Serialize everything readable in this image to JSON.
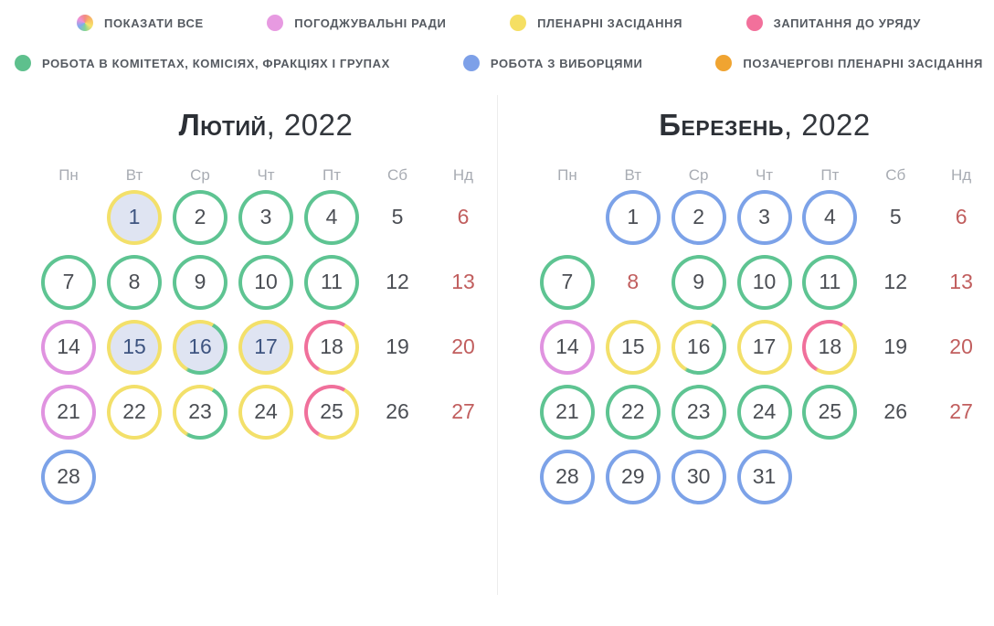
{
  "colors": {
    "ring_green": "#5ec492",
    "ring_blue": "#7ca2e8",
    "ring_magenta": "#e093e0",
    "ring_yellow": "#f3e06a",
    "ring_pink": "#f0709b",
    "legend_orange": "#f0a431",
    "filled_day_bg": "#dfe4f2",
    "holiday_text": "#c15e5e",
    "rainbow_dot": [
      "#f28b82",
      "#f8bd63",
      "#f7e36b",
      "#81d495",
      "#82aaf0",
      "#ef8fd8"
    ]
  },
  "legend": {
    "rows": [
      [
        {
          "id": "show-all",
          "label": "ПОКАЗАТИ ВСЕ",
          "color": "rainbow"
        },
        {
          "id": "coordination-councils",
          "label": "ПОГОДЖУВАЛЬНІ РАДИ",
          "color": "#e79ae1"
        },
        {
          "id": "plenary-sessions",
          "label": "ПЛЕНАРНІ ЗАСІДАННЯ",
          "color": "#f5df63"
        },
        {
          "id": "questions-to-government",
          "label": "ЗАПИТАННЯ ДО УРЯДУ",
          "color": "#f2709b"
        }
      ],
      [
        {
          "id": "committees-work",
          "label": "РОБОТА В КОМІТЕТАХ, КОМІСІЯХ, ФРАКЦІЯХ І ГРУПАХ",
          "color": "#5ec08d"
        },
        {
          "id": "constituents-work",
          "label": "РОБОТА З ВИБОРЦЯМИ",
          "color": "#7da0e8"
        },
        {
          "id": "extraordinary-plenary",
          "label": "ПОЗАЧЕРГОВІ ПЛЕНАРНІ ЗАСІДАННЯ",
          "color": "#f0a431"
        }
      ]
    ]
  },
  "calendar": {
    "weekdays": [
      "Пн",
      "Вт",
      "Ср",
      "Чт",
      "Пт",
      "Сб",
      "Нд"
    ],
    "months": [
      {
        "name": "Лютий",
        "year": ", 2022",
        "weeks": [
          [
            {
              "d": ""
            },
            {
              "d": "1",
              "ring": "yellow",
              "filled": true
            },
            {
              "d": "2",
              "ring": "green"
            },
            {
              "d": "3",
              "ring": "green"
            },
            {
              "d": "4",
              "ring": "green"
            },
            {
              "d": "5"
            },
            {
              "d": "6",
              "red": true
            }
          ],
          [
            {
              "d": "7",
              "ring": "green"
            },
            {
              "d": "8",
              "ring": "green"
            },
            {
              "d": "9",
              "ring": "green"
            },
            {
              "d": "10",
              "ring": "green"
            },
            {
              "d": "11",
              "ring": "green"
            },
            {
              "d": "12"
            },
            {
              "d": "13",
              "red": true
            }
          ],
          [
            {
              "d": "14",
              "ring": "magenta"
            },
            {
              "d": "15",
              "ring": "yellow",
              "filled": true
            },
            {
              "d": "16",
              "ring": "yellow-green",
              "filled": true
            },
            {
              "d": "17",
              "ring": "yellow",
              "filled": true
            },
            {
              "d": "18",
              "ring": "pink-yellow"
            },
            {
              "d": "19"
            },
            {
              "d": "20",
              "red": true
            }
          ],
          [
            {
              "d": "21",
              "ring": "magenta"
            },
            {
              "d": "22",
              "ring": "yellow"
            },
            {
              "d": "23",
              "ring": "yellow-green"
            },
            {
              "d": "24",
              "ring": "yellow"
            },
            {
              "d": "25",
              "ring": "pink-yellow"
            },
            {
              "d": "26"
            },
            {
              "d": "27",
              "red": true
            }
          ],
          [
            {
              "d": "28",
              "ring": "blue"
            },
            {
              "d": ""
            },
            {
              "d": ""
            },
            {
              "d": ""
            },
            {
              "d": ""
            },
            {
              "d": ""
            },
            {
              "d": ""
            }
          ]
        ]
      },
      {
        "name": "Березень",
        "year": ", 2022",
        "weeks": [
          [
            {
              "d": ""
            },
            {
              "d": "1",
              "ring": "blue"
            },
            {
              "d": "2",
              "ring": "blue"
            },
            {
              "d": "3",
              "ring": "blue"
            },
            {
              "d": "4",
              "ring": "blue"
            },
            {
              "d": "5"
            },
            {
              "d": "6",
              "red": true
            }
          ],
          [
            {
              "d": "7",
              "ring": "green"
            },
            {
              "d": "8",
              "red": true
            },
            {
              "d": "9",
              "ring": "green"
            },
            {
              "d": "10",
              "ring": "green"
            },
            {
              "d": "11",
              "ring": "green"
            },
            {
              "d": "12"
            },
            {
              "d": "13",
              "red": true
            }
          ],
          [
            {
              "d": "14",
              "ring": "magenta"
            },
            {
              "d": "15",
              "ring": "yellow"
            },
            {
              "d": "16",
              "ring": "yellow-green"
            },
            {
              "d": "17",
              "ring": "yellow"
            },
            {
              "d": "18",
              "ring": "pink-yellow"
            },
            {
              "d": "19"
            },
            {
              "d": "20",
              "red": true
            }
          ],
          [
            {
              "d": "21",
              "ring": "green"
            },
            {
              "d": "22",
              "ring": "green"
            },
            {
              "d": "23",
              "ring": "green"
            },
            {
              "d": "24",
              "ring": "green"
            },
            {
              "d": "25",
              "ring": "green"
            },
            {
              "d": "26"
            },
            {
              "d": "27",
              "red": true
            }
          ],
          [
            {
              "d": "28",
              "ring": "blue"
            },
            {
              "d": "29",
              "ring": "blue"
            },
            {
              "d": "30",
              "ring": "blue"
            },
            {
              "d": "31",
              "ring": "blue"
            },
            {
              "d": ""
            },
            {
              "d": ""
            },
            {
              "d": ""
            }
          ]
        ]
      }
    ]
  }
}
